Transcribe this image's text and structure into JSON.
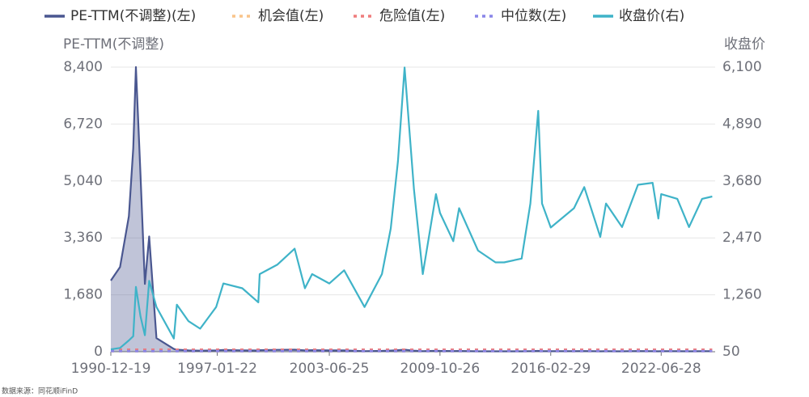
{
  "chart_data": {
    "type": "line",
    "y_label": "PE-TTM(不调整)",
    "y2_label": "收盘价",
    "source": "数据来源：同花顺iFinD",
    "x": [
      "1990-12-19",
      "1991-06-30",
      "1991-12-31",
      "1992-03-31",
      "1992-05-26",
      "1992-08-31",
      "1992-11-30",
      "1993-02-28",
      "1993-07-31",
      "1994-07-29",
      "1994-09-30",
      "1995-05-31",
      "1996-01-31",
      "1996-12-31",
      "1997-05-31",
      "1998-06-30",
      "1999-05-31",
      "1999-06-30",
      "2000-06-30",
      "2001-06-30",
      "2002-01-31",
      "2002-06-30",
      "2003-06-25",
      "2004-04-30",
      "2005-06-30",
      "2006-06-30",
      "2006-12-31",
      "2007-05-31",
      "2007-10-16",
      "2008-04-30",
      "2008-10-31",
      "2009-08-04",
      "2009-10-26",
      "2010-07-31",
      "2010-11-30",
      "2011-12-31",
      "2012-12-31",
      "2013-06-30",
      "2014-06-30",
      "2014-12-31",
      "2015-06-12",
      "2015-08-31",
      "2016-02-29",
      "2017-06-30",
      "2018-01-31",
      "2018-12-31",
      "2019-04-30",
      "2020-03-31",
      "2021-02-28",
      "2021-12-31",
      "2022-04-30",
      "2022-06-28",
      "2023-05-31",
      "2024-01-31",
      "2024-10-31",
      "2025-05-31"
    ],
    "xlim": [
      "1990-12-19",
      "2025-07-31"
    ],
    "xticks": [
      "1990-12-19",
      "1997-01-22",
      "2003-06-25",
      "2009-10-26",
      "2016-02-29",
      "2022-06-28"
    ],
    "ylim": [
      0,
      8400
    ],
    "yticks": [
      0,
      {
        "value": 1680,
        "label": "1,680"
      },
      {
        "value": 3360,
        "label": "3,360"
      },
      {
        "value": 5040,
        "label": "5,040"
      },
      {
        "value": 6720,
        "label": "6,720"
      },
      {
        "value": 8400,
        "label": "8,400"
      }
    ],
    "y2lim": [
      50,
      6100
    ],
    "y2ticks": [
      50,
      {
        "value": 1260,
        "label": "1,260"
      },
      {
        "value": 2470,
        "label": "2,470"
      },
      {
        "value": 3680,
        "label": "3,680"
      },
      {
        "value": 4890,
        "label": "4,890"
      },
      {
        "value": 6100,
        "label": "6,100"
      }
    ],
    "grid": true,
    "series": [
      {
        "name": "PE-TTM(不调整)(左)",
        "color": "#4a5790",
        "area": true,
        "values": [
          2100,
          2500,
          4000,
          6000,
          8400,
          5200,
          2000,
          3400,
          400,
          80,
          60,
          40,
          30,
          40,
          50,
          40,
          35,
          45,
          55,
          60,
          40,
          45,
          38,
          40,
          17,
          25,
          33,
          45,
          60,
          30,
          15,
          28,
          25,
          18,
          21,
          13,
          12,
          11,
          11,
          16,
          25,
          17,
          15,
          17,
          18,
          12,
          15,
          13,
          18,
          15,
          12,
          14,
          14,
          12,
          15,
          15
        ]
      },
      {
        "name": "机会值(左)",
        "color": "#f9c48a",
        "style": "dotted",
        "values": [
          12,
          12,
          12,
          12,
          12,
          12,
          12,
          12,
          12,
          12,
          12,
          12,
          12,
          12,
          12,
          12,
          12,
          12,
          12,
          12,
          12,
          12,
          12,
          12,
          12,
          12,
          12,
          12,
          12,
          12,
          12,
          12,
          12,
          12,
          12,
          12,
          12,
          12,
          12,
          12,
          12,
          12,
          12,
          12,
          12,
          12,
          12,
          12,
          12,
          12,
          12,
          12,
          12,
          12,
          12,
          12
        ]
      },
      {
        "name": "危险值(左)",
        "color": "#ef7d7d",
        "style": "dotted",
        "values": [
          60,
          60,
          60,
          60,
          60,
          60,
          60,
          60,
          60,
          60,
          60,
          60,
          60,
          60,
          60,
          60,
          60,
          60,
          60,
          60,
          60,
          60,
          60,
          60,
          60,
          60,
          60,
          60,
          60,
          60,
          60,
          60,
          60,
          60,
          60,
          60,
          60,
          60,
          60,
          60,
          60,
          60,
          60,
          60,
          60,
          60,
          60,
          60,
          60,
          60,
          60,
          60,
          60,
          60,
          60,
          60
        ]
      },
      {
        "name": "中位数(左)",
        "color": "#8a86e8",
        "style": "dotted",
        "values": [
          20,
          20,
          20,
          20,
          20,
          20,
          20,
          20,
          20,
          20,
          20,
          20,
          20,
          20,
          20,
          20,
          20,
          20,
          20,
          20,
          20,
          20,
          20,
          20,
          20,
          20,
          20,
          20,
          20,
          20,
          20,
          20,
          20,
          20,
          20,
          20,
          20,
          20,
          20,
          20,
          20,
          20,
          20,
          20,
          20,
          20,
          20,
          20,
          20,
          20,
          20,
          20,
          20,
          20,
          20,
          20
        ]
      },
      {
        "name": "收盘价(右)",
        "color": "#3fb3c8",
        "axis": "y2",
        "values": [
          100,
          130,
          290,
          380,
          1429,
          800,
          400,
          1558,
          1000,
          330,
          1050,
          700,
          540,
          1000,
          1500,
          1400,
          1100,
          1700,
          1900,
          2240,
          1400,
          1700,
          1500,
          1780,
          1000,
          1700,
          2670,
          4100,
          6092,
          3500,
          1700,
          3400,
          3000,
          2400,
          3100,
          2200,
          1950,
          1950,
          2030,
          3200,
          5170,
          3200,
          2690,
          3100,
          3550,
          2490,
          3200,
          2700,
          3600,
          3640,
          2880,
          3400,
          3300,
          2700,
          3300,
          3350
        ]
      }
    ]
  }
}
